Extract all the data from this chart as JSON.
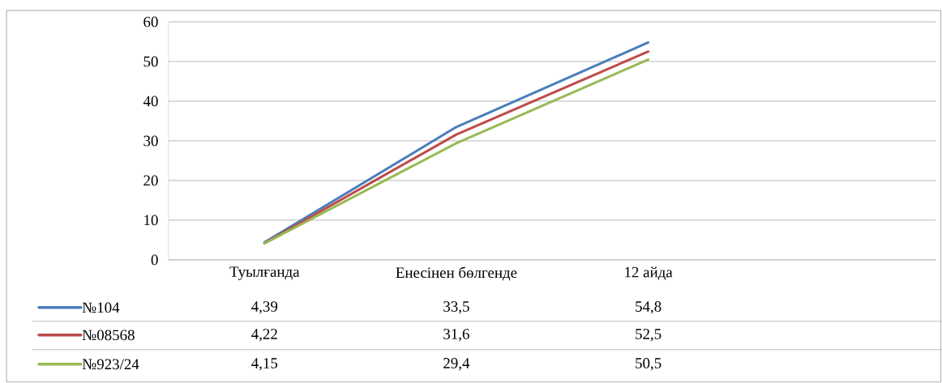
{
  "chart_data": {
    "type": "line",
    "categories": [
      "Туылғанда",
      "Енесінен бөлгенде",
      "12 айда",
      null
    ],
    "series": [
      {
        "name": "№104",
        "color": "#4a7ebb",
        "values": [
          4.39,
          33.5,
          54.8,
          null
        ],
        "value_labels": [
          "4,39",
          "33,5",
          "54,8",
          null
        ]
      },
      {
        "name": "№08568",
        "color": "#be4b48",
        "values": [
          4.22,
          31.6,
          52.5,
          null
        ],
        "value_labels": [
          "4,22",
          "31,6",
          "52,5",
          null
        ]
      },
      {
        "name": "№923/24",
        "color": "#98b954",
        "values": [
          4.15,
          29.4,
          50.5,
          null
        ],
        "value_labels": [
          "4,15",
          "29,4",
          "50,5",
          null
        ]
      }
    ],
    "ylim": [
      0,
      60
    ],
    "yticks": [
      0,
      10,
      20,
      30,
      40,
      50,
      60
    ],
    "grid": "y",
    "legend": "bottom"
  }
}
